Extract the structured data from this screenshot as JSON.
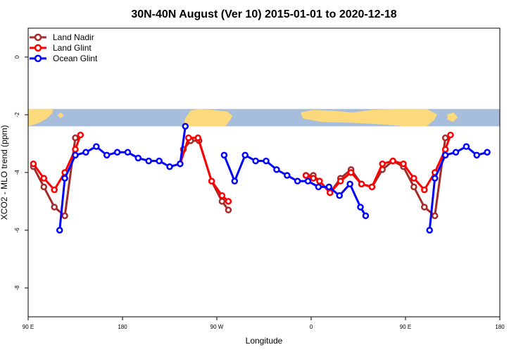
{
  "chart_data": {
    "type": "line",
    "title": "30N-40N August (Ver 10)   2015-01-01 to 2020-12-18",
    "xlabel": "Longitude",
    "ylabel": "XCO2 - MLO trend (ppm)",
    "xlim": [
      90,
      540
    ],
    "ylim": [
      -9,
      1
    ],
    "xticks": [
      {
        "value": 90,
        "label": "90 E"
      },
      {
        "value": 180,
        "label": "180"
      },
      {
        "value": 270,
        "label": "90 W"
      },
      {
        "value": 360,
        "label": "0"
      },
      {
        "value": 450,
        "label": "90 E"
      },
      {
        "value": 540,
        "label": "180"
      }
    ],
    "yticks": [
      {
        "value": 0,
        "label": "0"
      },
      {
        "value": -2,
        "label": "-2"
      },
      {
        "value": -4,
        "label": "-4"
      },
      {
        "value": -6,
        "label": "-6"
      },
      {
        "value": -8,
        "label": "-8"
      }
    ],
    "map_band": {
      "ymin": -2.4,
      "ymax": -1.8,
      "land_color": "#fcd97a",
      "ocean_color": "#a6bddb"
    },
    "legend_position": "top-left",
    "grid": false,
    "series": [
      {
        "name": "Land Nadir",
        "color": "#a52a2a",
        "segments": [
          [
            [
              95,
              -3.8
            ],
            [
              105,
              -4.5
            ],
            [
              115,
              -5.2
            ],
            [
              125,
              -5.5
            ],
            [
              135,
              -2.8
            ]
          ],
          [
            [
              238,
              -3.2
            ],
            [
              245,
              -2.9
            ],
            [
              253,
              -2.9
            ],
            [
              265,
              -4.3
            ],
            [
              275,
              -5.0
            ],
            [
              281,
              -5.3
            ]
          ],
          [
            [
              355,
              -4.1
            ],
            [
              362,
              -4.1
            ],
            [
              368,
              -4.3
            ],
            [
              378,
              -4.7
            ],
            [
              388,
              -4.2
            ],
            [
              398,
              -3.9
            ],
            [
              408,
              -4.4
            ],
            [
              418,
              -4.5
            ],
            [
              428,
              -3.9
            ],
            [
              438,
              -3.6
            ],
            [
              448,
              -3.8
            ],
            [
              458,
              -4.5
            ],
            [
              468,
              -5.2
            ],
            [
              478,
              -5.5
            ],
            [
              488,
              -2.8
            ]
          ]
        ]
      },
      {
        "name": "Land Glint",
        "color": "#ff0000",
        "segments": [
          [
            [
              95,
              -3.7
            ],
            [
              105,
              -4.2
            ],
            [
              115,
              -4.6
            ],
            [
              125,
              -4.0
            ],
            [
              135,
              -3.2
            ],
            [
              140,
              -2.7
            ]
          ],
          [
            [
              235,
              -3.7
            ],
            [
              243,
              -2.8
            ],
            [
              252,
              -2.8
            ],
            [
              265,
              -4.3
            ],
            [
              275,
              -4.8
            ],
            [
              281,
              -5.0
            ]
          ],
          [
            [
              355,
              -4.1
            ],
            [
              362,
              -4.2
            ],
            [
              368,
              -4.3
            ],
            [
              378,
              -4.7
            ],
            [
              388,
              -4.3
            ],
            [
              398,
              -4.0
            ],
            [
              408,
              -4.4
            ],
            [
              418,
              -4.5
            ],
            [
              428,
              -3.7
            ],
            [
              438,
              -3.6
            ],
            [
              448,
              -3.7
            ],
            [
              458,
              -4.2
            ],
            [
              468,
              -4.6
            ],
            [
              478,
              -4.0
            ],
            [
              488,
              -3.2
            ],
            [
              493,
              -2.7
            ]
          ]
        ]
      },
      {
        "name": "Ocean Glint",
        "color": "#0000ff",
        "segments": [
          [
            [
              120,
              -6.0
            ],
            [
              125,
              -4.2
            ],
            [
              135,
              -3.4
            ],
            [
              145,
              -3.3
            ],
            [
              155,
              -3.1
            ],
            [
              165,
              -3.4
            ],
            [
              175,
              -3.3
            ],
            [
              185,
              -3.3
            ],
            [
              195,
              -3.5
            ],
            [
              205,
              -3.6
            ],
            [
              215,
              -3.6
            ],
            [
              225,
              -3.8
            ],
            [
              235,
              -3.7
            ],
            [
              240,
              -2.4
            ]
          ],
          [
            [
              277,
              -3.4
            ],
            [
              287,
              -4.3
            ],
            [
              297,
              -3.4
            ],
            [
              307,
              -3.6
            ],
            [
              317,
              -3.6
            ],
            [
              327,
              -3.9
            ],
            [
              337,
              -4.1
            ],
            [
              347,
              -4.3
            ],
            [
              357,
              -4.3
            ],
            [
              367,
              -4.5
            ],
            [
              377,
              -4.5
            ],
            [
              387,
              -4.8
            ],
            [
              397,
              -4.4
            ],
            [
              407,
              -5.2
            ],
            [
              412,
              -5.5
            ]
          ],
          [
            [
              473,
              -6.0
            ],
            [
              478,
              -4.2
            ],
            [
              488,
              -3.4
            ],
            [
              498,
              -3.3
            ],
            [
              508,
              -3.1
            ],
            [
              518,
              -3.4
            ],
            [
              528,
              -3.3
            ]
          ]
        ]
      }
    ]
  }
}
